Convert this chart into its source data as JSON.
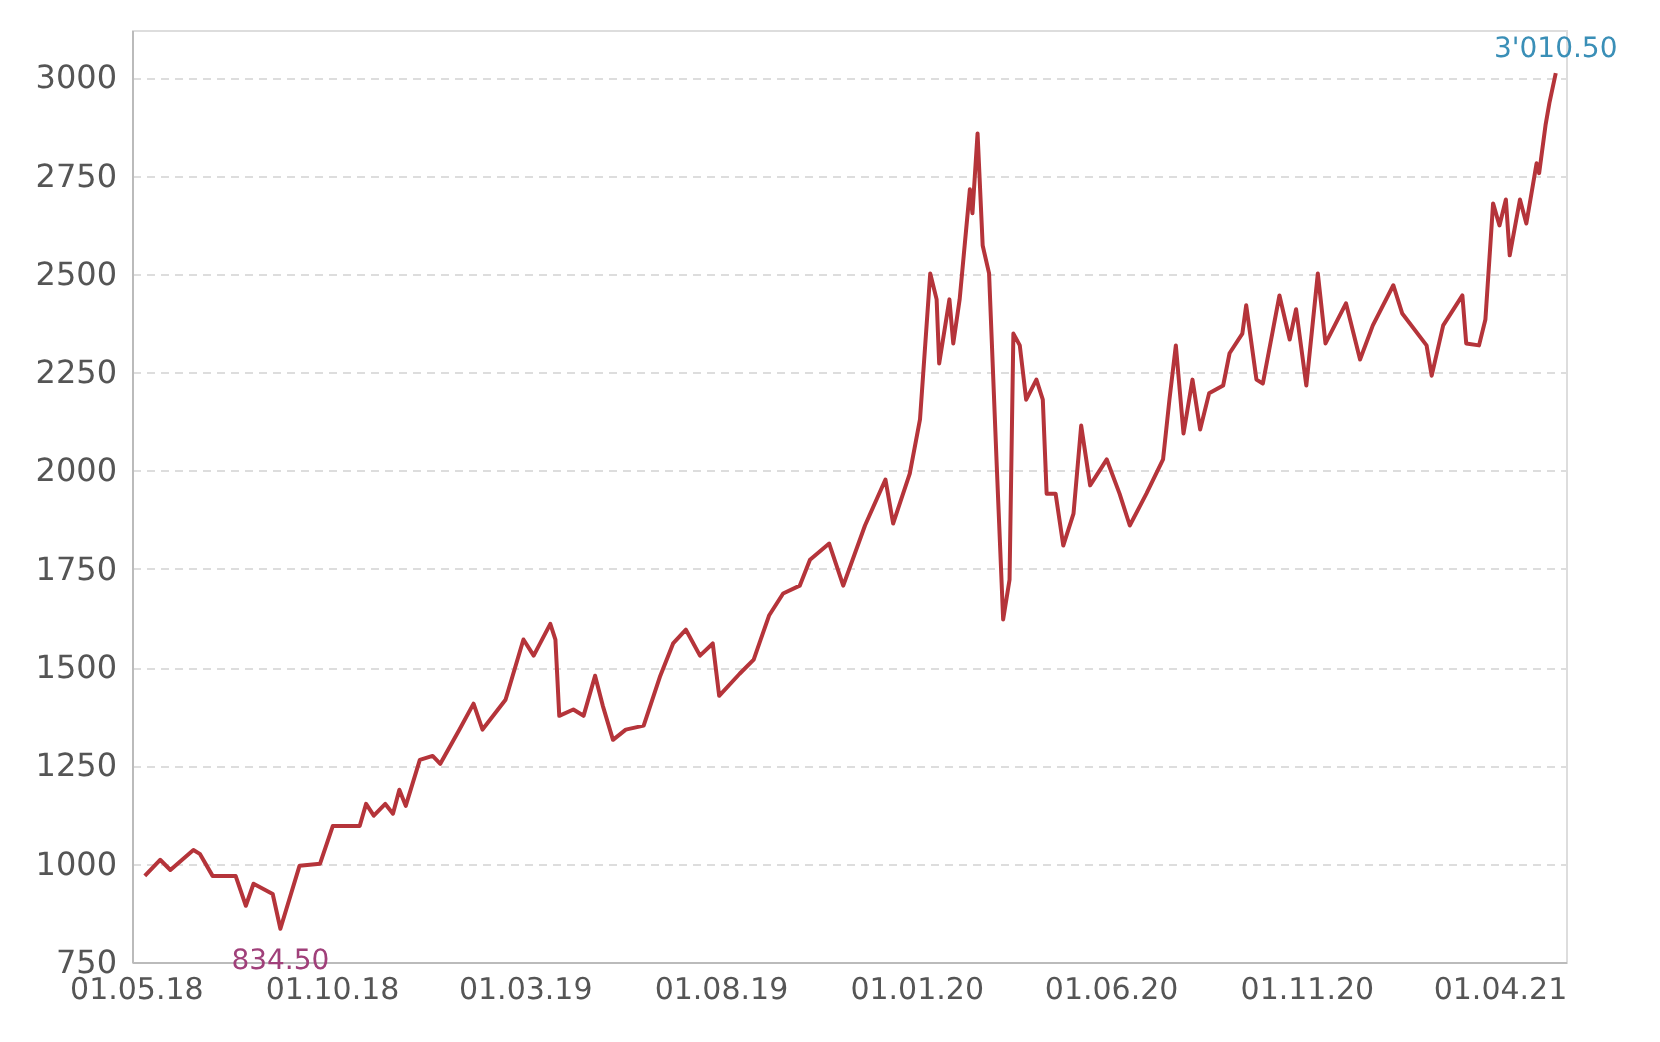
{
  "chart_data": {
    "type": "line",
    "x": [
      "2018-05-08",
      "2018-05-20",
      "2018-05-28",
      "2018-06-15",
      "2018-06-20",
      "2018-06-30",
      "2018-07-18",
      "2018-07-26",
      "2018-08-01",
      "2018-08-16",
      "2018-08-22",
      "2018-09-06",
      "2018-09-22",
      "2018-10-02",
      "2018-10-23",
      "2018-10-28",
      "2018-11-03",
      "2018-11-12",
      "2018-11-18",
      "2018-11-23",
      "2018-11-28",
      "2018-12-09",
      "2018-12-19",
      "2018-12-25",
      "2019-01-09",
      "2019-01-20",
      "2019-01-27",
      "2019-02-14",
      "2019-02-28",
      "2019-03-08",
      "2019-03-21",
      "2019-03-25",
      "2019-03-28",
      "2019-04-08",
      "2019-04-16",
      "2019-04-25",
      "2019-05-01",
      "2019-05-09",
      "2019-05-19",
      "2019-06-02",
      "2019-06-15",
      "2019-06-25",
      "2019-07-05",
      "2019-07-16",
      "2019-07-26",
      "2019-07-31",
      "2019-08-16",
      "2019-08-27",
      "2019-09-08",
      "2019-09-19",
      "2019-10-02",
      "2019-10-10",
      "2019-10-25",
      "2019-11-05",
      "2019-11-22",
      "2019-12-08",
      "2019-12-14",
      "2019-12-27",
      "2020-01-04",
      "2020-01-12",
      "2020-01-17",
      "2020-01-19",
      "2020-01-27",
      "2020-01-30",
      "2020-02-04",
      "2020-02-12",
      "2020-02-14",
      "2020-02-18",
      "2020-02-22",
      "2020-02-27",
      "2020-03-04",
      "2020-03-09",
      "2020-03-14",
      "2020-03-17",
      "2020-03-22",
      "2020-03-27",
      "2020-04-04",
      "2020-04-09",
      "2020-04-12",
      "2020-04-19",
      "2020-04-25",
      "2020-05-03",
      "2020-05-09",
      "2020-05-16",
      "2020-05-29",
      "2020-06-08",
      "2020-06-16",
      "2020-06-29",
      "2020-07-12",
      "2020-07-17",
      "2020-07-22",
      "2020-07-28",
      "2020-08-04",
      "2020-08-10",
      "2020-08-17",
      "2020-08-28",
      "2020-09-02",
      "2020-09-12",
      "2020-09-15",
      "2020-09-23",
      "2020-09-28",
      "2020-10-11",
      "2020-10-19",
      "2020-10-24",
      "2020-11-01",
      "2020-11-10",
      "2020-11-16",
      "2020-12-02",
      "2020-12-13",
      "2020-12-23",
      "2021-01-08",
      "2021-01-15",
      "2021-02-03",
      "2021-02-07",
      "2021-02-16",
      "2021-03-03",
      "2021-03-06",
      "2021-03-16",
      "2021-03-21",
      "2021-03-27",
      "2021-04-01",
      "2021-04-06",
      "2021-04-09",
      "2021-04-17",
      "2021-04-22",
      "2021-04-30",
      "2021-05-02",
      "2021-05-07",
      "2021-05-10",
      "2021-05-15"
    ],
    "series": [
      {
        "color": "#b5343a",
        "values": [
          969,
          1010,
          984,
          1035,
          1025,
          969,
          969,
          893,
          949,
          923,
          834.5,
          995,
          1000,
          1096,
          1096,
          1152,
          1122,
          1152,
          1127,
          1188,
          1147,
          1264,
          1274,
          1254,
          1341,
          1407,
          1341,
          1417,
          1570,
          1529,
          1610,
          1570,
          1376,
          1392,
          1376,
          1478,
          1402,
          1315,
          1341,
          1351,
          1478,
          1560,
          1595,
          1529,
          1560,
          1427,
          1483,
          1519,
          1631,
          1687,
          1707,
          1773,
          1814,
          1707,
          1860,
          1977,
          1865,
          1992,
          2130,
          2501,
          2435,
          2272,
          2435,
          2323,
          2435,
          2715,
          2654,
          2857,
          2572,
          2501,
          2012,
          1621,
          1722,
          2348,
          2318,
          2180,
          2231,
          2180,
          1941,
          1941,
          1809,
          1890,
          2114,
          1962,
          2028,
          1941,
          1860,
          1941,
          2028,
          2180,
          2318,
          2094,
          2231,
          2104,
          2196,
          2216,
          2298,
          2348,
          2420,
          2231,
          2221,
          2445,
          2333,
          2410,
          2216,
          2501,
          2323,
          2425,
          2282,
          2369,
          2471,
          2399,
          2318,
          2241,
          2369,
          2445,
          2323,
          2318,
          2384,
          2679,
          2623,
          2689,
          2547,
          2689,
          2628,
          2781,
          2756,
          2878,
          2934,
          3010.5
        ]
      }
    ],
    "xlim": [
      "2018-04-28",
      "2021-05-23"
    ],
    "xticks": [
      {
        "value": "2018-05-01",
        "label": "01.05.18"
      },
      {
        "value": "2018-10-01",
        "label": "01.10.18"
      },
      {
        "value": "2019-03-01",
        "label": "01.03.19"
      },
      {
        "value": "2019-08-01",
        "label": "01.08.19"
      },
      {
        "value": "2020-01-01",
        "label": "01.01.20"
      },
      {
        "value": "2020-06-01",
        "label": "01.06.20"
      },
      {
        "value": "2020-11-01",
        "label": "01.11.20"
      },
      {
        "value": "2021-04-01",
        "label": "01.04.21"
      }
    ],
    "ylim": [
      750,
      3120
    ],
    "yticks": [
      750,
      1000,
      1250,
      1500,
      1750,
      2000,
      2250,
      2500,
      2750,
      3000
    ],
    "grid": "y",
    "marker": "none",
    "line_style": "solid",
    "annotations": [
      {
        "text": "834.50",
        "x": "2018-08-22",
        "y": 834.5
      },
      {
        "text": "3'010.50",
        "x": "2021-05-15",
        "y": 3010.5
      }
    ]
  }
}
